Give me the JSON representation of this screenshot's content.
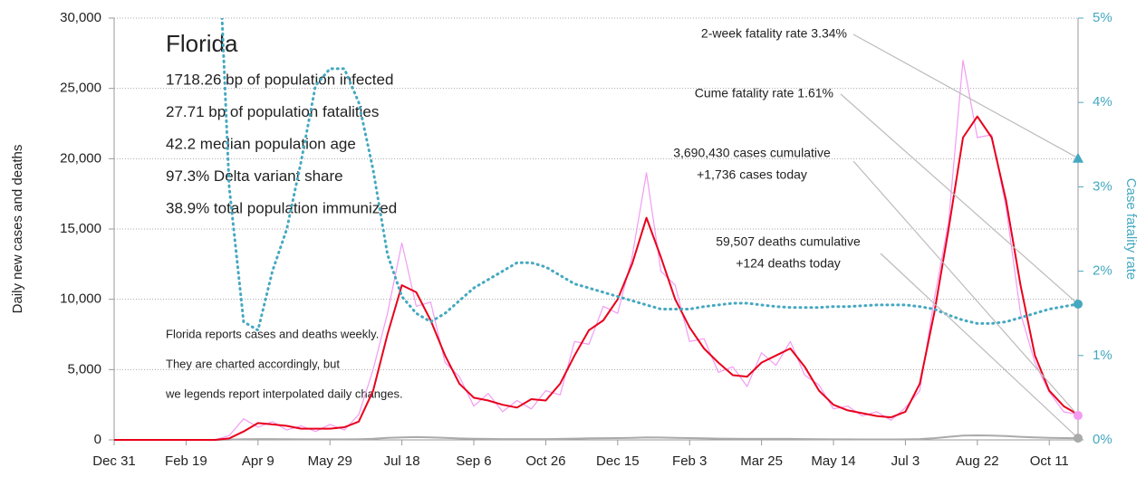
{
  "chart_data": {
    "type": "line",
    "info": {
      "title": "Florida",
      "lines": [
        "1718.26 bp of population infected",
        "27.71 bp of population fatalities",
        "42.2 median population age",
        "97.3% Delta variant share",
        "38.9% total population immunized"
      ]
    },
    "notes": [
      "Florida reports cases and deaths weekly.",
      "They are charted accordingly, but",
      "we legends report interpolated daily changes."
    ],
    "ylabel": "Daily new cases and deaths",
    "y2label": "Case fatality rate",
    "xlim": [
      0,
      670
    ],
    "xticks": [
      {
        "value": 0,
        "label": "Dec 31"
      },
      {
        "value": 50,
        "label": "Feb 19"
      },
      {
        "value": 100,
        "label": "Apr 9"
      },
      {
        "value": 150,
        "label": "May 29"
      },
      {
        "value": 200,
        "label": "Jul 18"
      },
      {
        "value": 250,
        "label": "Sep 6"
      },
      {
        "value": 300,
        "label": "Oct 26"
      },
      {
        "value": 350,
        "label": "Dec 15"
      },
      {
        "value": 400,
        "label": "Feb 3"
      },
      {
        "value": 450,
        "label": "Mar 25"
      },
      {
        "value": 500,
        "label": "May 14"
      },
      {
        "value": 550,
        "label": "Jul 3"
      },
      {
        "value": 600,
        "label": "Aug 22"
      },
      {
        "value": 650,
        "label": "Oct 11"
      }
    ],
    "ylim": [
      0,
      30000
    ],
    "yticks": [
      0,
      {
        "value": 5000,
        "label": "5,000"
      },
      {
        "value": 10000,
        "label": "10,000"
      },
      {
        "value": 15000,
        "label": "15,000"
      },
      {
        "value": 20000,
        "label": "20,000"
      },
      {
        "value": 25000,
        "label": "25,000"
      },
      {
        "value": 30000,
        "label": "30,000"
      }
    ],
    "y2lim": [
      0,
      5
    ],
    "y2ticks": [
      {
        "value": 0,
        "label": "0%"
      },
      {
        "value": 1,
        "label": "1%"
      },
      {
        "value": 2,
        "label": "2%"
      },
      {
        "value": 3,
        "label": "3%"
      },
      {
        "value": 4,
        "label": "4%"
      },
      {
        "value": 5,
        "label": "5%"
      }
    ],
    "grid": true,
    "x": [
      0,
      10,
      20,
      30,
      40,
      50,
      60,
      70,
      80,
      90,
      100,
      110,
      120,
      130,
      140,
      150,
      160,
      170,
      180,
      190,
      200,
      210,
      220,
      230,
      240,
      250,
      260,
      270,
      280,
      290,
      300,
      310,
      320,
      330,
      340,
      350,
      360,
      370,
      380,
      390,
      400,
      410,
      420,
      430,
      440,
      450,
      460,
      470,
      480,
      490,
      500,
      510,
      520,
      530,
      540,
      550,
      560,
      570,
      580,
      590,
      600,
      610,
      620,
      630,
      640,
      650,
      660,
      670
    ],
    "series": [
      {
        "color": "#f29cf2",
        "width": 1.2,
        "values": [
          0,
          0,
          0,
          0,
          0,
          0,
          0,
          0,
          300,
          1500,
          900,
          1300,
          700,
          1000,
          600,
          1100,
          700,
          1800,
          5000,
          9000,
          14000,
          9500,
          9800,
          5500,
          4500,
          2400,
          3300,
          2000,
          2800,
          2200,
          3500,
          3200,
          7000,
          6800,
          9500,
          9000,
          13000,
          19000,
          12000,
          11000,
          7000,
          7200,
          4800,
          5200,
          3800,
          6200,
          5300,
          7000,
          4600,
          3900,
          2200,
          2400,
          1700,
          2000,
          1400,
          2300,
          3500,
          10000,
          15500,
          27000,
          21500,
          21700,
          16500,
          9000,
          5500,
          3400,
          2000,
          1800
        ]
      },
      {
        "color": "#aaaaaa",
        "width": 2,
        "values": [
          0,
          0,
          0,
          0,
          0,
          0,
          0,
          0,
          20,
          50,
          60,
          60,
          50,
          40,
          40,
          40,
          40,
          50,
          80,
          150,
          180,
          200,
          180,
          140,
          100,
          80,
          70,
          60,
          60,
          60,
          60,
          70,
          90,
          110,
          120,
          130,
          150,
          180,
          170,
          150,
          130,
          110,
          90,
          80,
          70,
          70,
          70,
          70,
          60,
          50,
          40,
          40,
          30,
          30,
          30,
          40,
          60,
          120,
          220,
          300,
          320,
          300,
          280,
          220,
          180,
          150,
          130,
          124
        ]
      },
      {
        "color": "#e8001c",
        "width": 2,
        "values": [
          0,
          0,
          0,
          0,
          0,
          0,
          0,
          0,
          100,
          600,
          1200,
          1100,
          1000,
          800,
          800,
          800,
          900,
          1300,
          3500,
          7500,
          11000,
          10500,
          8500,
          6000,
          4000,
          3000,
          2800,
          2500,
          2300,
          2900,
          2800,
          4000,
          6000,
          7800,
          8500,
          10000,
          12500,
          15800,
          13000,
          10000,
          8000,
          6500,
          5500,
          4600,
          4500,
          5500,
          6000,
          6500,
          5200,
          3500,
          2500,
          2100,
          1900,
          1700,
          1600,
          2000,
          4000,
          9000,
          15000,
          21500,
          23000,
          21500,
          17000,
          11000,
          6000,
          3500,
          2400,
          1800
        ]
      },
      {
        "color": "#45a8c0",
        "width": 3,
        "dash": "1 5",
        "axis": "y2",
        "values": [
          null,
          null,
          null,
          null,
          null,
          null,
          null,
          7,
          3.0,
          1.4,
          1.3,
          2.0,
          2.5,
          3.3,
          4.2,
          4.4,
          4.4,
          4.0,
          3.2,
          2.2,
          1.7,
          1.5,
          1.4,
          1.5,
          1.65,
          1.8,
          1.9,
          2.0,
          2.1,
          2.1,
          2.05,
          1.95,
          1.85,
          1.8,
          1.75,
          1.7,
          1.65,
          1.6,
          1.55,
          1.55,
          1.55,
          1.58,
          1.6,
          1.62,
          1.62,
          1.6,
          1.58,
          1.57,
          1.57,
          1.57,
          1.58,
          1.58,
          1.59,
          1.6,
          1.6,
          1.6,
          1.58,
          1.55,
          1.48,
          1.42,
          1.38,
          1.38,
          1.4,
          1.45,
          1.5,
          1.55,
          1.58,
          1.61
        ]
      }
    ],
    "annotations": [
      {
        "text": [
          "2-week fatality rate 3.34%"
        ],
        "value": 3.34,
        "axis": "y2",
        "marker": "triangle",
        "color": "#45a8c0"
      },
      {
        "text": [
          "Cume fatality rate 1.61%"
        ],
        "value": 1.61,
        "axis": "y2",
        "marker": "circle",
        "color": "#45a8c0"
      },
      {
        "text": [
          "3,690,430 cases cumulative",
          "+1,736 cases today"
        ],
        "value": 1736,
        "axis": "y",
        "marker": "circle",
        "color": "#f29cf2"
      },
      {
        "text": [
          "59,507 deaths cumulative",
          "+124 deaths today"
        ],
        "value": 124,
        "axis": "y",
        "marker": "circle",
        "color": "#aaaaaa"
      }
    ]
  }
}
